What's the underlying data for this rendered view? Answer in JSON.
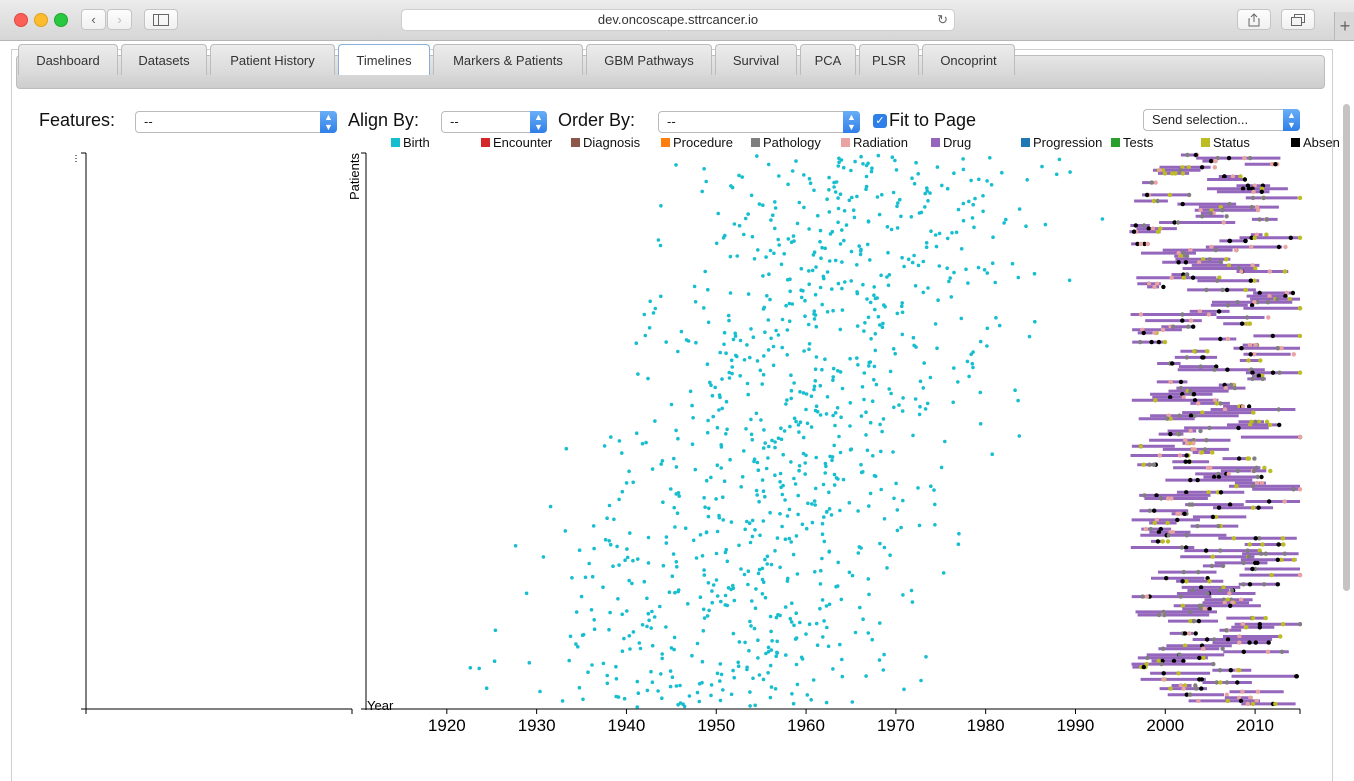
{
  "browser": {
    "url": "dev.oncoscape.sttrcancer.io",
    "back_icon": "‹",
    "forward_icon": "›",
    "reload_icon": "↻",
    "plus_icon": "+"
  },
  "tabs": [
    {
      "label": "Dashboard"
    },
    {
      "label": "Datasets"
    },
    {
      "label": "Patient History"
    },
    {
      "label": "Timelines",
      "active": true
    },
    {
      "label": "Markers & Patients"
    },
    {
      "label": "GBM Pathways"
    },
    {
      "label": "Survival"
    },
    {
      "label": "PCA"
    },
    {
      "label": "PLSR"
    },
    {
      "label": "Oncoprint"
    }
  ],
  "controls": {
    "features_label": "Features:",
    "features_value": "--",
    "align_label": "Align By:",
    "align_value": "--",
    "order_label": "Order By:",
    "order_value": "--",
    "fit_label": "Fit to Page",
    "fit_checked": true,
    "send_value": "Send selection..."
  },
  "legend": [
    {
      "label": "Birth",
      "color": "#17becf"
    },
    {
      "label": "Encounter",
      "color": "#d62728"
    },
    {
      "label": "Diagnosis",
      "color": "#8c564b"
    },
    {
      "label": "Procedure",
      "color": "#ff7f0e"
    },
    {
      "label": "Pathology",
      "color": "#7f7f7f"
    },
    {
      "label": "Radiation",
      "color": "#e9a3a3"
    },
    {
      "label": "Drug",
      "color": "#9467bd"
    },
    {
      "label": "Progression",
      "color": "#1f77b4"
    },
    {
      "label": "Tests",
      "color": "#2ca02c"
    },
    {
      "label": "Status",
      "color": "#bcbd22"
    },
    {
      "label": "Absen",
      "color": "#000000"
    }
  ],
  "chart_data": {
    "type": "scatter",
    "ylabel": "Patients",
    "xlabel": "Year",
    "xlim": [
      1911,
      2015
    ],
    "x_ticks": [
      "1920",
      "1930",
      "1940",
      "1950",
      "1960",
      "1970",
      "1980",
      "1990",
      "2000",
      "2010"
    ],
    "grid": false,
    "series": [
      {
        "name": "Birth",
        "color": "#17becf",
        "x_range": [
          1911,
          1993
        ],
        "count": 1000
      },
      {
        "name": "Drug",
        "color": "#9467bd",
        "x_range": [
          1990,
          2015
        ]
      },
      {
        "name": "Status",
        "color": "#bcbd22",
        "x_range": [
          1990,
          2015
        ]
      },
      {
        "name": "Radiation",
        "color": "#e9a3a3",
        "x_range": [
          1995,
          2015
        ]
      },
      {
        "name": "Pathology",
        "color": "#7f7f7f",
        "x_range": [
          1995,
          2015
        ]
      },
      {
        "name": "Absen",
        "color": "#000000",
        "x_range": [
          1995,
          2015
        ]
      }
    ]
  }
}
